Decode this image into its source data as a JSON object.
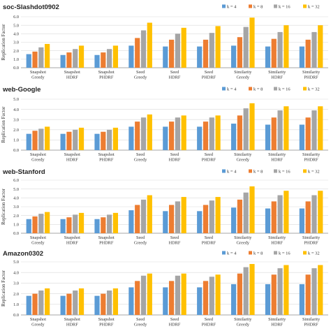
{
  "colors": {
    "k4": "#5b9bd5",
    "k8": "#ed7d31",
    "k16": "#a5a5a5",
    "k32": "#ffc000",
    "grid": "#d9d9d9",
    "axis": "#888888"
  },
  "chart_data": [
    {
      "type": "bar",
      "title": "soc-Slashdot0902",
      "ylabel": "Replication Factor",
      "ylim": [
        0,
        6
      ],
      "yticks": [
        "0.0",
        "1.0",
        "2.0",
        "3.0",
        "4.0",
        "5.0",
        "6.0"
      ],
      "categories": [
        [
          "Snapshot",
          "Greedy"
        ],
        [
          "Snapshot",
          "HDRF"
        ],
        [
          "Snapshot",
          "PHDRF"
        ],
        [
          "Seed",
          "Greedy"
        ],
        [
          "Seed",
          "HDRF"
        ],
        [
          "Seed",
          "PHDRF"
        ],
        [
          "Similarity",
          "Greedy"
        ],
        [
          "Similarity",
          "HDRF"
        ],
        [
          "Similarity",
          "PHDRF"
        ]
      ],
      "legend_position": "top-right",
      "series": [
        {
          "name": "k = 4",
          "values": [
            1.6,
            1.5,
            1.5,
            2.6,
            2.5,
            2.5,
            2.6,
            2.5,
            2.5
          ]
        },
        {
          "name": "k = 8",
          "values": [
            1.9,
            1.8,
            1.8,
            3.5,
            3.3,
            3.3,
            3.6,
            3.4,
            3.3
          ]
        },
        {
          "name": "k = 16",
          "values": [
            2.4,
            2.2,
            2.2,
            4.4,
            4.0,
            4.1,
            4.8,
            4.2,
            4.2
          ]
        },
        {
          "name": "k = 32",
          "values": [
            2.8,
            2.6,
            2.6,
            5.3,
            4.7,
            4.9,
            5.9,
            5.0,
            5.0
          ]
        }
      ]
    },
    {
      "type": "bar",
      "title": "web-Google",
      "ylabel": "Replication Factor",
      "ylim": [
        0,
        5
      ],
      "yticks": [
        "0.0",
        "1.0",
        "2.0",
        "3.0",
        "4.0",
        "5.0"
      ],
      "categories": [
        [
          "Snapshot",
          "Greedy"
        ],
        [
          "Snapshot",
          "HDRF"
        ],
        [
          "Snapshot",
          "PHDRF"
        ],
        [
          "Seed",
          "Greedy"
        ],
        [
          "Seed",
          "HDRF"
        ],
        [
          "Seed",
          "PHDRF"
        ],
        [
          "Similarity",
          "Greedy"
        ],
        [
          "Similarity",
          "HDRF"
        ],
        [
          "Similarity",
          "PHDRF"
        ]
      ],
      "legend_position": "top-right",
      "series": [
        {
          "name": "k = 4",
          "values": [
            1.6,
            1.6,
            1.6,
            2.3,
            2.3,
            2.3,
            2.6,
            2.5,
            2.5
          ]
        },
        {
          "name": "k = 8",
          "values": [
            1.9,
            1.8,
            1.8,
            2.8,
            2.8,
            2.8,
            3.4,
            3.2,
            3.2
          ]
        },
        {
          "name": "k = 16",
          "values": [
            2.1,
            2.0,
            2.0,
            3.2,
            3.2,
            3.2,
            4.1,
            3.9,
            3.9
          ]
        },
        {
          "name": "k = 32",
          "values": [
            2.3,
            2.2,
            2.2,
            3.5,
            3.4,
            3.4,
            4.6,
            4.3,
            4.3
          ]
        }
      ]
    },
    {
      "type": "bar",
      "title": "web-Stanford",
      "ylabel": "Replication Factor",
      "ylim": [
        0,
        6
      ],
      "yticks": [
        "0.0",
        "1.0",
        "2.0",
        "3.0",
        "4.0",
        "5.0",
        "6.0"
      ],
      "categories": [
        [
          "Snapshot",
          "Greedy"
        ],
        [
          "Snapshot",
          "HDRF"
        ],
        [
          "Snapshot",
          "PHDRF"
        ],
        [
          "Seed",
          "Greedy"
        ],
        [
          "Seed",
          "HDRF"
        ],
        [
          "Seed",
          "PHDRF"
        ],
        [
          "Similarity",
          "Greedy"
        ],
        [
          "Similarity",
          "HDRF"
        ],
        [
          "Similarity",
          "PHDRF"
        ]
      ],
      "legend_position": "top-right",
      "series": [
        {
          "name": "k = 4",
          "values": [
            1.6,
            1.6,
            1.6,
            2.6,
            2.5,
            2.5,
            2.9,
            2.8,
            2.8
          ]
        },
        {
          "name": "k = 8",
          "values": [
            1.9,
            1.8,
            1.8,
            3.2,
            3.2,
            3.2,
            3.8,
            3.6,
            3.6
          ]
        },
        {
          "name": "k = 16",
          "values": [
            2.2,
            2.1,
            2.1,
            3.8,
            3.6,
            3.7,
            4.6,
            4.3,
            4.3
          ]
        },
        {
          "name": "k = 32",
          "values": [
            2.4,
            2.3,
            2.3,
            4.3,
            4.1,
            4.1,
            5.3,
            4.8,
            4.8
          ]
        }
      ]
    },
    {
      "type": "bar",
      "title": "Amazon0302",
      "ylabel": "Replication Factor",
      "ylim": [
        0,
        5
      ],
      "yticks": [
        "0.0",
        "1.0",
        "2.0",
        "3.0",
        "4.0",
        "5.0"
      ],
      "categories": [
        [
          "Snapshot",
          "Greedy"
        ],
        [
          "Snapshot",
          "HDRF"
        ],
        [
          "Snapshot",
          "PHDRF"
        ],
        [
          "Seed",
          "Greedy"
        ],
        [
          "Seed",
          "HDRF"
        ],
        [
          "Seed",
          "PHDRF"
        ],
        [
          "Similarity",
          "Greedy"
        ],
        [
          "Similarity",
          "HDRF"
        ],
        [
          "Similarity",
          "PHDRF"
        ]
      ],
      "legend_position": "top-right",
      "series": [
        {
          "name": "k = 4",
          "values": [
            1.8,
            1.8,
            1.8,
            2.6,
            2.6,
            2.6,
            2.9,
            2.9,
            2.9
          ]
        },
        {
          "name": "k = 8",
          "values": [
            2.0,
            2.0,
            2.0,
            3.2,
            3.2,
            3.2,
            3.9,
            3.8,
            3.8
          ]
        },
        {
          "name": "k = 16",
          "values": [
            2.3,
            2.3,
            2.3,
            3.7,
            3.7,
            3.6,
            4.5,
            4.4,
            4.4
          ]
        },
        {
          "name": "k = 32",
          "values": [
            2.5,
            2.5,
            2.5,
            3.9,
            3.9,
            3.8,
            4.8,
            4.7,
            4.7
          ]
        }
      ]
    }
  ]
}
